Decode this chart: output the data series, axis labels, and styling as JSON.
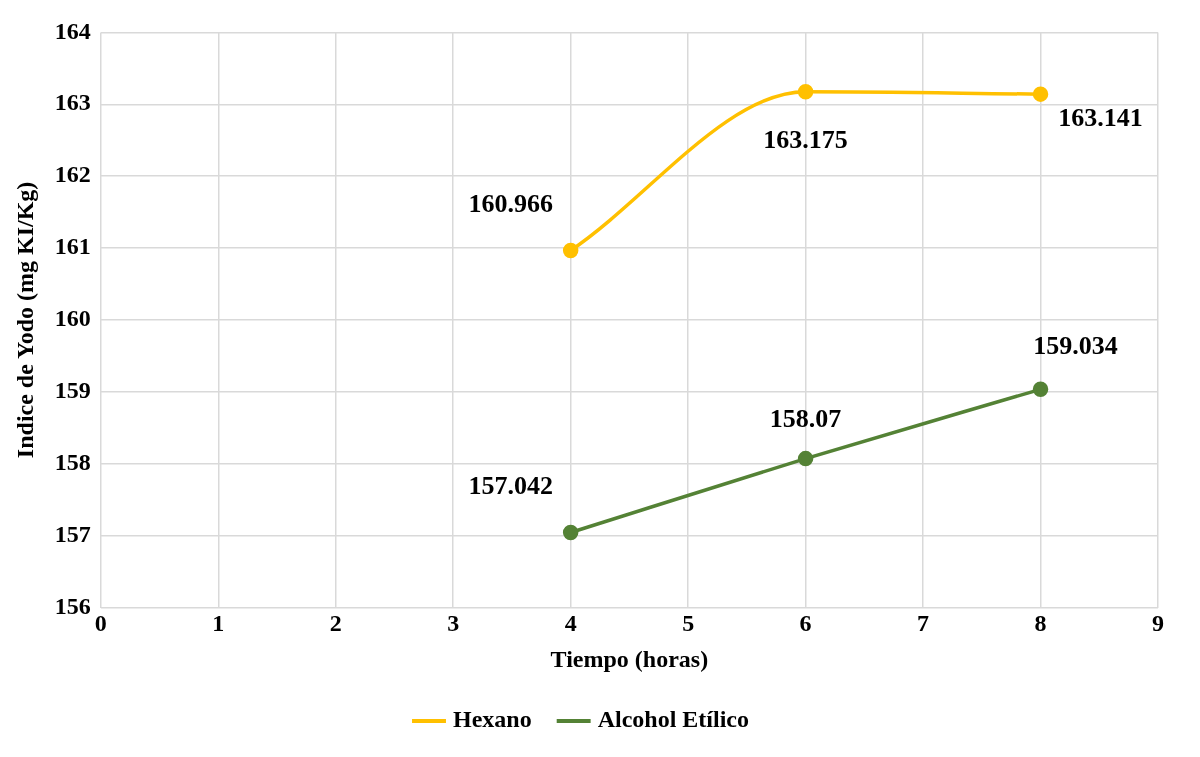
{
  "chart_data": {
    "type": "line",
    "xlabel": "Tiempo (horas)",
    "ylabel": "Indice de Yodo (mg KI/Kg)",
    "x": [
      4,
      6,
      8
    ],
    "series": [
      {
        "name": "Hexano",
        "color": "#ffc000",
        "values": [
          160.966,
          163.175,
          163.141
        ]
      },
      {
        "name": "Alcohol Etílico",
        "color": "#548235",
        "values": [
          157.042,
          158.07,
          159.034
        ]
      }
    ],
    "xlim": [
      0,
      9
    ],
    "xticks": [
      0,
      1,
      2,
      3,
      4,
      5,
      6,
      7,
      8,
      9
    ],
    "ylim": [
      156,
      164
    ],
    "yticks": [
      156,
      157,
      158,
      159,
      160,
      161,
      162,
      163,
      164
    ],
    "grid": true,
    "legend": "bottom",
    "marker": "circle",
    "line_style": "solid",
    "data_labels": true
  }
}
